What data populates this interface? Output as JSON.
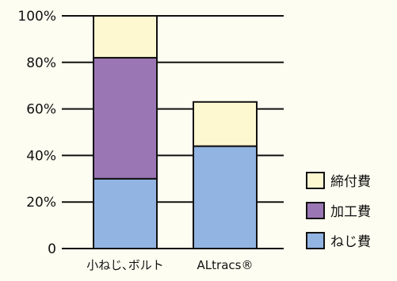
{
  "chart_data": {
    "type": "bar",
    "stacked": true,
    "categories": [
      "小ねじ､ボルト",
      "ALtracs®"
    ],
    "series": [
      {
        "name": "ねじ費",
        "values": [
          30,
          44
        ],
        "color": "#92b4e2"
      },
      {
        "name": "加工費",
        "values": [
          52,
          0
        ],
        "color": "#9b76b4"
      },
      {
        "name": "締付費",
        "values": [
          18,
          19
        ],
        "color": "#fef8d1"
      }
    ],
    "yticks": [
      "0",
      "20%",
      "40%",
      "60%",
      "80%",
      "100%"
    ],
    "ytick_values": [
      0,
      20,
      40,
      60,
      80,
      100
    ],
    "ylim": [
      0,
      100
    ],
    "grid": true,
    "legend_position": "right",
    "legend_order": [
      "締付費",
      "加工費",
      "ねじ費"
    ],
    "title": "",
    "xlabel": "",
    "ylabel": ""
  }
}
